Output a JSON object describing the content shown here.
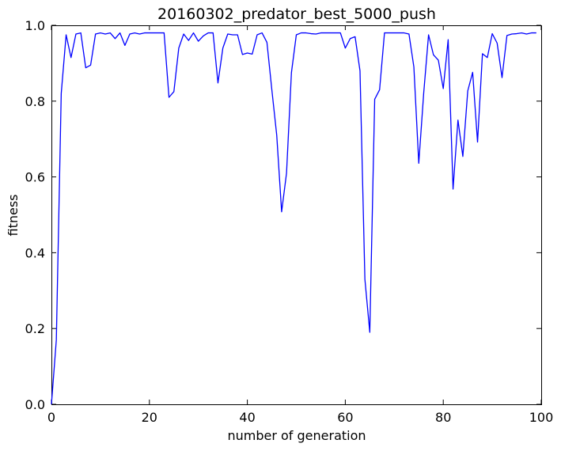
{
  "chart_data": {
    "type": "line",
    "title": "20160302_predator_best_5000_push",
    "xlabel": "number of generation",
    "ylabel": "fitness",
    "xlim": [
      0,
      100
    ],
    "ylim": [
      0.0,
      1.0
    ],
    "xticks": [
      "0",
      "20",
      "40",
      "60",
      "80",
      "100"
    ],
    "yticks": [
      "0.0",
      "0.2",
      "0.4",
      "0.6",
      "0.8",
      "1.0"
    ],
    "grid": false,
    "series": [
      {
        "color": "#0000ff",
        "x": [
          0,
          1,
          2,
          3,
          4,
          5,
          6,
          7,
          8,
          9,
          10,
          11,
          12,
          13,
          14,
          15,
          16,
          17,
          18,
          19,
          20,
          21,
          22,
          23,
          24,
          25,
          26,
          27,
          28,
          29,
          30,
          31,
          32,
          33,
          34,
          35,
          36,
          37,
          38,
          39,
          40,
          41,
          42,
          43,
          44,
          45,
          46,
          47,
          48,
          49,
          50,
          51,
          52,
          53,
          54,
          55,
          56,
          57,
          58,
          59,
          60,
          61,
          62,
          63,
          64,
          65,
          66,
          67,
          68,
          69,
          70,
          71,
          72,
          73,
          74,
          75,
          76,
          77,
          78,
          79,
          80,
          81,
          82,
          83,
          84,
          85,
          86,
          87,
          88,
          89,
          90,
          91,
          92,
          93,
          94,
          95,
          96,
          97,
          98,
          99
        ],
        "y": [
          0.0,
          0.17,
          0.82,
          0.975,
          0.915,
          0.977,
          0.98,
          0.888,
          0.895,
          0.977,
          0.98,
          0.977,
          0.98,
          0.965,
          0.98,
          0.947,
          0.977,
          0.98,
          0.977,
          0.98,
          0.98,
          0.98,
          0.98,
          0.98,
          0.81,
          0.825,
          0.94,
          0.977,
          0.96,
          0.98,
          0.958,
          0.972,
          0.98,
          0.98,
          0.848,
          0.94,
          0.977,
          0.975,
          0.975,
          0.923,
          0.927,
          0.924,
          0.975,
          0.98,
          0.955,
          0.83,
          0.71,
          0.508,
          0.61,
          0.875,
          0.975,
          0.98,
          0.98,
          0.978,
          0.977,
          0.98,
          0.98,
          0.98,
          0.98,
          0.98,
          0.94,
          0.965,
          0.97,
          0.88,
          0.33,
          0.19,
          0.805,
          0.83,
          0.98,
          0.98,
          0.98,
          0.98,
          0.98,
          0.977,
          0.89,
          0.636,
          0.82,
          0.975,
          0.922,
          0.908,
          0.833,
          0.962,
          0.568,
          0.75,
          0.654,
          0.827,
          0.876,
          0.692,
          0.925,
          0.915,
          0.978,
          0.953,
          0.862,
          0.973,
          0.977,
          0.978,
          0.98,
          0.977,
          0.98,
          0.98
        ]
      }
    ]
  }
}
